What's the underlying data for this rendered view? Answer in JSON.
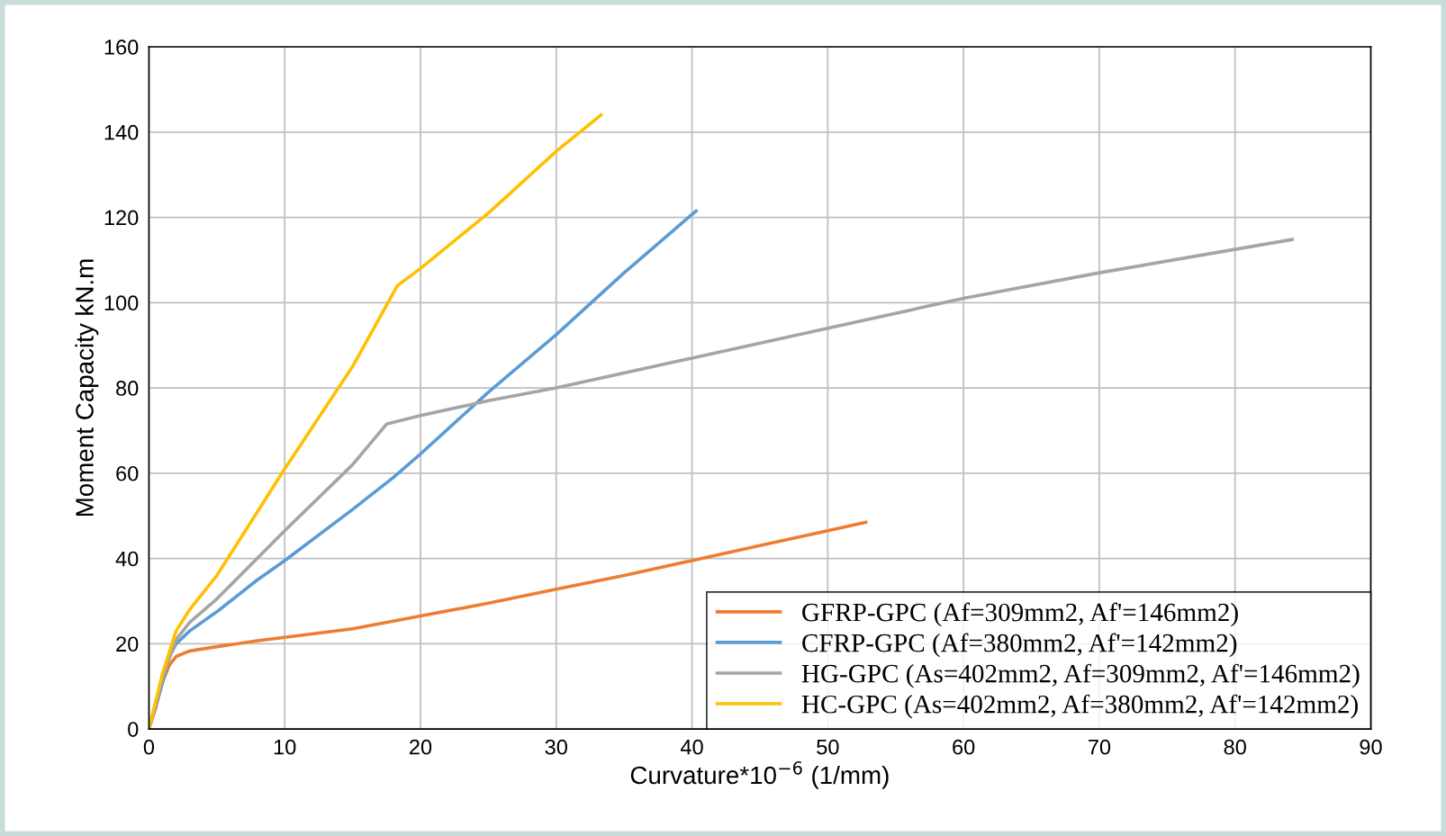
{
  "chart_data": {
    "type": "line",
    "xlabel": "Curvature*10$^{−6}$ (1/mm)",
    "ylabel": "Moment Capacity kN.m",
    "xlim": [
      0,
      90
    ],
    "xticks": [
      0,
      10,
      20,
      30,
      40,
      50,
      60,
      70,
      80,
      90
    ],
    "ylim": [
      0,
      160
    ],
    "yticks": [
      0,
      20,
      40,
      60,
      80,
      100,
      120,
      140,
      160
    ],
    "grid": true,
    "legend": "bottom right",
    "marker": "none",
    "line_style": "solid",
    "series": [
      {
        "name": "GFRP-GPC (Af=309mm2, Af'=146mm2)",
        "color": "#ed7d31",
        "x": [
          0,
          0.5,
          1,
          1.5,
          2,
          3,
          5,
          8,
          10,
          15,
          20,
          25,
          30,
          35,
          40,
          45,
          50,
          52.8
        ],
        "values": [
          0,
          5,
          11,
          15,
          17,
          18.3,
          19.3,
          20.7,
          21.5,
          23.5,
          26.5,
          29.5,
          32.8,
          36,
          39.5,
          43,
          46.5,
          48.5
        ]
      },
      {
        "name": "CFRP-GPC (Af=380mm2, Af'=142mm2)",
        "color": "#5b9bd5",
        "x": [
          0,
          1,
          1.5,
          2,
          3,
          5,
          8,
          10,
          15,
          18,
          20,
          25,
          30,
          35,
          40.3
        ],
        "values": [
          0,
          11,
          17,
          20,
          23,
          27.5,
          35,
          39.5,
          51.5,
          59,
          64.5,
          79,
          92.5,
          107,
          121.5
        ]
      },
      {
        "name": "HG-GPC (As=402mm2, Af=309mm2, Af'=146mm2)",
        "color": "#a5a5a5",
        "x": [
          0,
          1,
          2,
          3,
          5,
          10,
          15,
          17.5,
          20,
          25,
          30,
          40,
          50,
          60,
          70,
          84.2
        ],
        "values": [
          0,
          12,
          21,
          25,
          30.5,
          46.5,
          62,
          71.5,
          73.5,
          77,
          80,
          87,
          94,
          101,
          107,
          114.8
        ]
      },
      {
        "name": "HC-GPC (As=402mm2, Af=380mm2, Af'=142mm2)",
        "color": "#ffc000",
        "x": [
          0,
          1,
          2,
          3,
          5,
          10,
          15,
          18.3,
          20,
          25,
          30,
          33.3
        ],
        "values": [
          0,
          13,
          23,
          28,
          36,
          61,
          85,
          104,
          108,
          121,
          135.5,
          144
        ]
      }
    ]
  }
}
